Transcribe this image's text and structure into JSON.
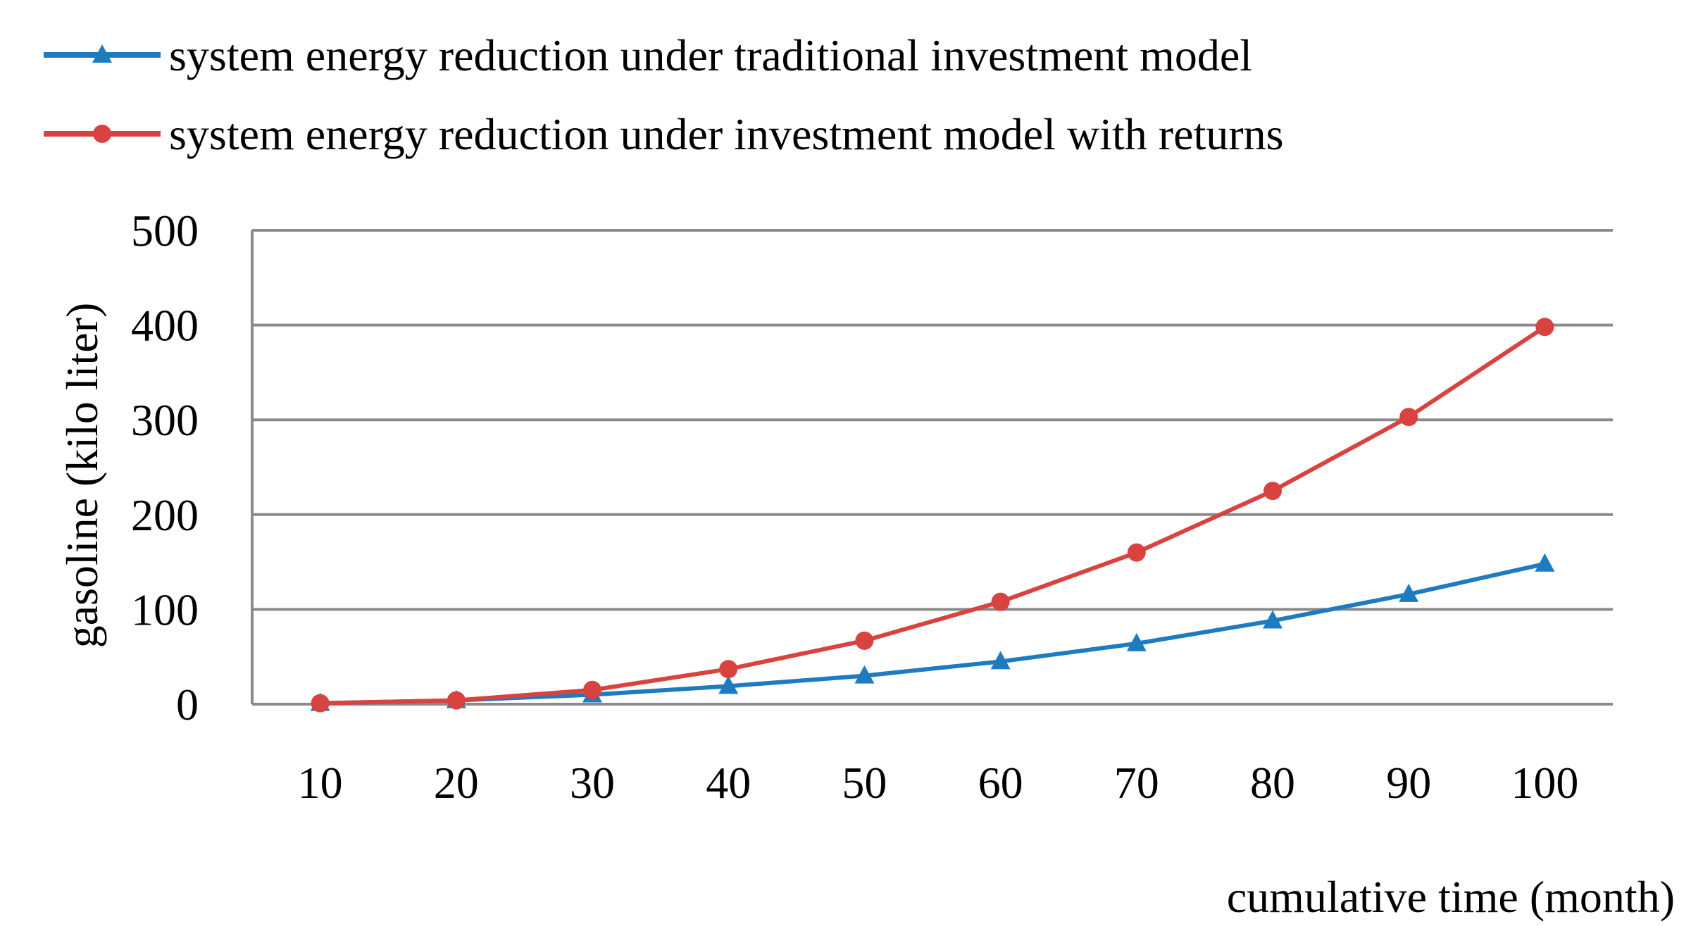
{
  "chart_data": {
    "type": "line",
    "title": "",
    "xlabel": "cumulative time (month)",
    "ylabel": "gasoline (kilo liter)",
    "categories": [
      "10",
      "20",
      "30",
      "40",
      "50",
      "60",
      "70",
      "80",
      "90",
      "100"
    ],
    "ylim": [
      0,
      500
    ],
    "yticks": [
      "0",
      "100",
      "200",
      "300",
      "400",
      "500"
    ],
    "grid": true,
    "legend_position": "top",
    "series": [
      {
        "name": "system energy reduction under traditional investment model",
        "color": "#1f7bc0",
        "marker": "triangle",
        "values": [
          1,
          4,
          10,
          19,
          30,
          45,
          64,
          88,
          116,
          148
        ]
      },
      {
        "name": "system energy reduction under investment model with returns",
        "color": "#d9433f",
        "marker": "circle",
        "values": [
          1,
          4,
          15,
          37,
          67,
          108,
          160,
          225,
          303,
          398
        ]
      }
    ]
  }
}
